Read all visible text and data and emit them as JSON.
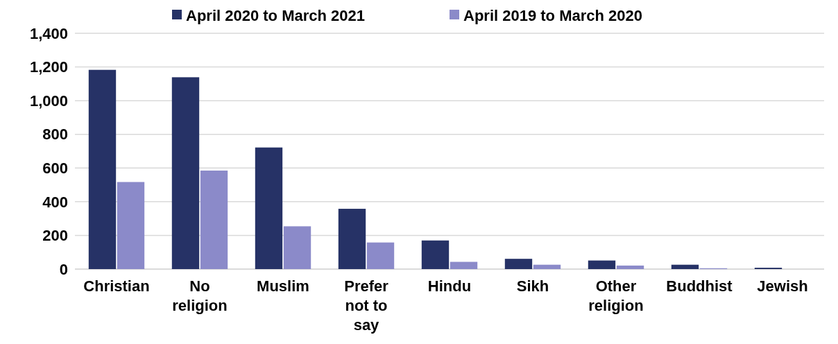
{
  "chart_data": {
    "type": "bar",
    "categories": [
      "Christian",
      "No religion",
      "Muslim",
      "Prefer not to say",
      "Hindu",
      "Sikh",
      "Other religion",
      "Buddhist",
      "Jewish"
    ],
    "series": [
      {
        "name": "April 2020 to March 2021",
        "color": "#263266",
        "values": [
          1183,
          1139,
          722,
          358,
          170,
          61,
          51,
          26,
          8
        ]
      },
      {
        "name": "April 2019 to March 2020",
        "color": "#8b8ac9",
        "values": [
          517,
          585,
          254,
          158,
          43,
          26,
          21,
          5,
          null
        ]
      }
    ],
    "ylim": [
      0,
      1400
    ],
    "yticks": [
      {
        "value": 0,
        "label": "0"
      },
      {
        "value": 200,
        "label": "200"
      },
      {
        "value": 400,
        "label": "400"
      },
      {
        "value": 600,
        "label": "600"
      },
      {
        "value": 800,
        "label": "800"
      },
      {
        "value": 1000,
        "label": "1,000"
      },
      {
        "value": 1200,
        "label": "1,200"
      },
      {
        "value": 1400,
        "label": "1,400"
      }
    ],
    "grid": "y",
    "legend": "top"
  }
}
